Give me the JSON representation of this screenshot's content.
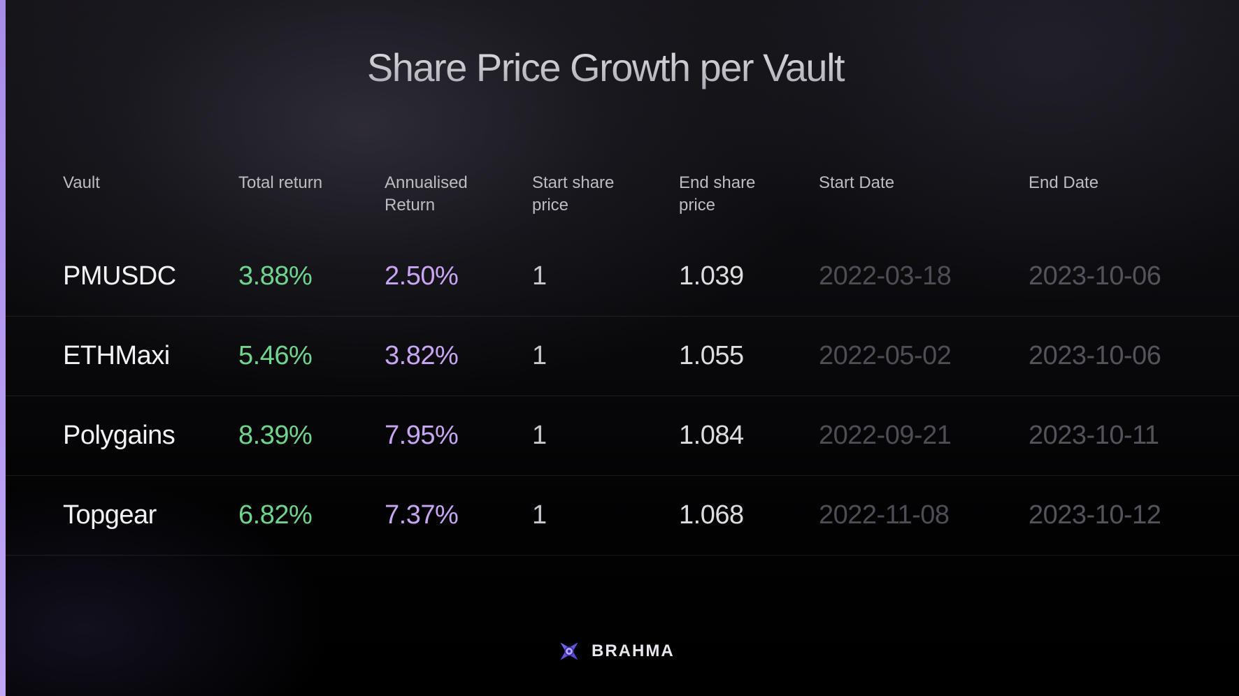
{
  "title": "Share Price Growth per Vault",
  "accent_colors": {
    "left_bar": "#b79af0",
    "total_return": "#6fd58e",
    "annualised_return": "#c9a6f3"
  },
  "table": {
    "headers": [
      "Vault",
      "Total return",
      "Annualised\nReturn",
      "Start share\nprice",
      "End share\nprice",
      "Start Date",
      "End Date"
    ],
    "rows": [
      {
        "vault": "PMUSDC",
        "total_return": "3.88%",
        "annualised_return": "2.50%",
        "start_share_price": "1",
        "end_share_price": "1.039",
        "start_date": "2022-03-18",
        "end_date": "2023-10-06"
      },
      {
        "vault": "ETHMaxi",
        "total_return": "5.46%",
        "annualised_return": "3.82%",
        "start_share_price": "1",
        "end_share_price": "1.055",
        "start_date": "2022-05-02",
        "end_date": "2023-10-06"
      },
      {
        "vault": "Polygains",
        "total_return": "8.39%",
        "annualised_return": "7.95%",
        "start_share_price": "1",
        "end_share_price": "1.084",
        "start_date": "2022-09-21",
        "end_date": "2023-10-11"
      },
      {
        "vault": "Topgear",
        "total_return": "6.82%",
        "annualised_return": "7.37%",
        "start_share_price": "1",
        "end_share_price": "1.068",
        "start_date": "2022-11-08",
        "end_date": "2023-10-12"
      }
    ]
  },
  "footer": {
    "brand_name": "BRAHMA",
    "logo_icon": "brahma-logo-icon"
  }
}
